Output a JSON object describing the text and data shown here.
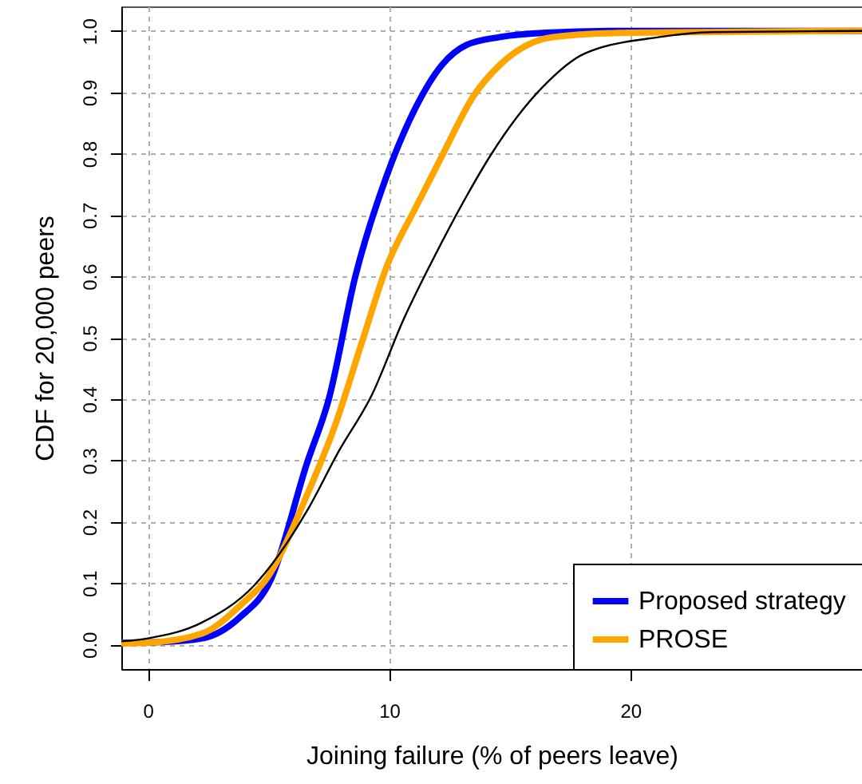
{
  "chart_data": {
    "type": "line",
    "xlabel": "Joining failure (% of peers leave)",
    "ylabel": "CDF for 20,000 peers",
    "xlim": [
      -1.1,
      29.6
    ],
    "xticks": [
      0,
      10,
      20
    ],
    "ylim": [
      -0.04,
      1.04
    ],
    "yticks": [
      {
        "value": 0,
        "label": "0.0"
      },
      0.1,
      0.2,
      0.3,
      0.4,
      0.5,
      0.6,
      0.7,
      0.8,
      0.9,
      {
        "value": 1,
        "label": "1.0"
      }
    ],
    "grid": true,
    "legend": "bottom right",
    "line_style": "solid",
    "marker": "none",
    "series": [
      {
        "name": "Proposed strategy",
        "color": "#0000ff",
        "x": [
          -1.1,
          0.5,
          2.25,
          3.8,
          5.1,
          6.6,
          7.5,
          8.6,
          9.9,
          11.1,
          12.2,
          13.2,
          14.6,
          16.5,
          19.9,
          29.6
        ],
        "values": [
          0.003,
          0.004,
          0.01,
          0.044,
          0.106,
          0.296,
          0.4,
          0.6,
          0.764,
          0.875,
          0.945,
          0.977,
          0.99,
          0.997,
          1.0,
          1.0
        ]
      },
      {
        "name": "PROSE",
        "color": "#ffa500",
        "x": [
          -1.1,
          0,
          2.25,
          4.0,
          4.9,
          6.6,
          7.75,
          8.9,
          9.9,
          11.1,
          12.2,
          13.5,
          14.6,
          16.8,
          19.9,
          29.6
        ],
        "values": [
          0.002,
          0.003,
          0.018,
          0.07,
          0.106,
          0.244,
          0.356,
          0.496,
          0.616,
          0.712,
          0.797,
          0.894,
          0.945,
          0.99,
          0.997,
          1.0
        ]
      },
      {
        "color": "#000000",
        "x": [
          -1.1,
          0,
          2.25,
          4.4,
          6.6,
          7.9,
          9.3,
          10.6,
          11.9,
          13.2,
          14.2,
          16.4,
          18.1,
          21.2,
          23.4,
          29.6
        ],
        "values": [
          0.005,
          0.01,
          0.036,
          0.096,
          0.218,
          0.314,
          0.408,
          0.53,
          0.634,
          0.73,
          0.797,
          0.91,
          0.963,
          0.99,
          0.998,
          1.0
        ]
      }
    ]
  }
}
